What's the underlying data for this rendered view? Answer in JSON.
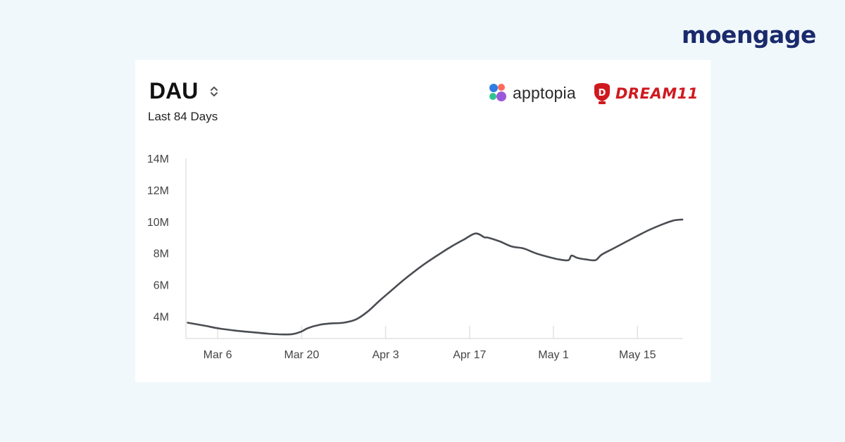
{
  "brand": {
    "name": "moengage"
  },
  "header": {
    "title": "DAU",
    "subtitle": "Last 84 Days",
    "partner_logos": [
      "apptopia",
      "DREAM11"
    ],
    "sort_icon": "chevron-up-down-icon"
  },
  "colors": {
    "line": "#4a4d52",
    "axis": "#e2e2e2",
    "brand": "#1a2a6c",
    "dream11": "#d0191f"
  },
  "chart_data": {
    "type": "line",
    "title": "DAU",
    "subtitle": "Last 84 Days",
    "xlabel": "",
    "ylabel": "",
    "grid": false,
    "x_ticks": [
      "Mar 6",
      "Mar 20",
      "Apr 3",
      "Apr 17",
      "May 1",
      "May 15"
    ],
    "x_tick_days": [
      0,
      14,
      28,
      42,
      56,
      70
    ],
    "y_ticks": [
      "4M",
      "6M",
      "8M",
      "10M",
      "12M",
      "14M"
    ],
    "y_tick_values": [
      4000000,
      6000000,
      8000000,
      10000000,
      12000000,
      14000000
    ],
    "xlim": [
      -5.3,
      77.6
    ],
    "ylim": [
      2600000,
      14000000
    ],
    "series": [
      {
        "x": [
          -5,
          -2,
          0,
          3,
          6,
          9,
          11,
          12.5,
          14,
          15,
          17,
          19,
          21,
          23,
          25,
          27,
          29,
          31,
          33,
          35,
          37,
          39,
          41,
          43,
          44.5,
          45,
          47,
          49,
          51,
          53,
          55,
          57,
          58.5,
          59,
          60,
          61.5,
          63,
          64,
          66,
          68,
          70,
          72,
          74,
          76,
          77.5
        ],
        "values": [
          3600000,
          3400000,
          3250000,
          3100000,
          2990000,
          2890000,
          2860000,
          2880000,
          3050000,
          3250000,
          3470000,
          3560000,
          3600000,
          3800000,
          4300000,
          5000000,
          5650000,
          6300000,
          6900000,
          7450000,
          7950000,
          8430000,
          8850000,
          9250000,
          9000000,
          8990000,
          8750000,
          8430000,
          8300000,
          8000000,
          7780000,
          7600000,
          7560000,
          7850000,
          7700000,
          7600000,
          7560000,
          7900000,
          8300000,
          8700000,
          9100000,
          9480000,
          9800000,
          10070000,
          10130000
        ]
      }
    ]
  }
}
